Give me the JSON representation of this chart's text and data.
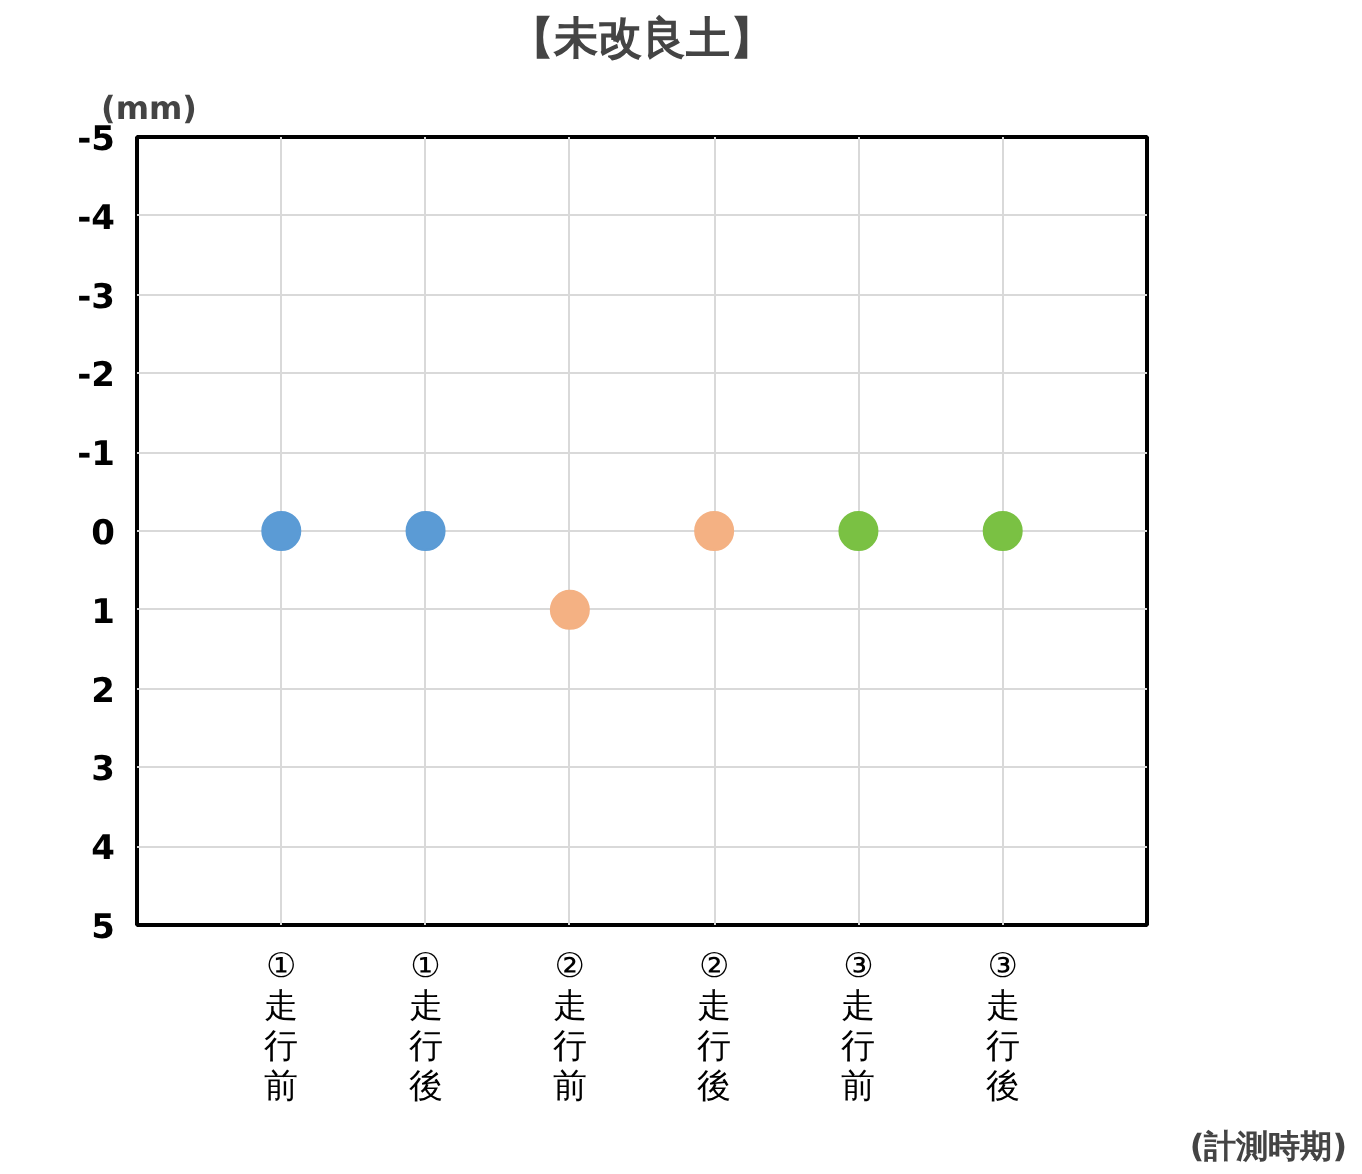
{
  "chart_data": {
    "type": "scatter",
    "title": "【未改良土】",
    "ylabel": "(mm)",
    "xlabel": "(計測時期)",
    "categories": [
      "①走行前",
      "①走行後",
      "②走行前",
      "②走行後",
      "③走行前",
      "③走行後"
    ],
    "series": [
      {
        "color": "#5b9bd5",
        "values": [
          0,
          0,
          null,
          null,
          null,
          null
        ]
      },
      {
        "color": "#f4b183",
        "values": [
          null,
          null,
          1,
          0,
          null,
          null
        ]
      },
      {
        "color": "#7ac143",
        "values": [
          null,
          null,
          null,
          null,
          0,
          0
        ]
      }
    ],
    "ylim": [
      5,
      -5
    ],
    "yticks": [
      -5,
      -4,
      -3,
      -2,
      -1,
      0,
      1,
      2,
      3,
      4,
      5
    ],
    "grid": true,
    "marker": "circle"
  }
}
